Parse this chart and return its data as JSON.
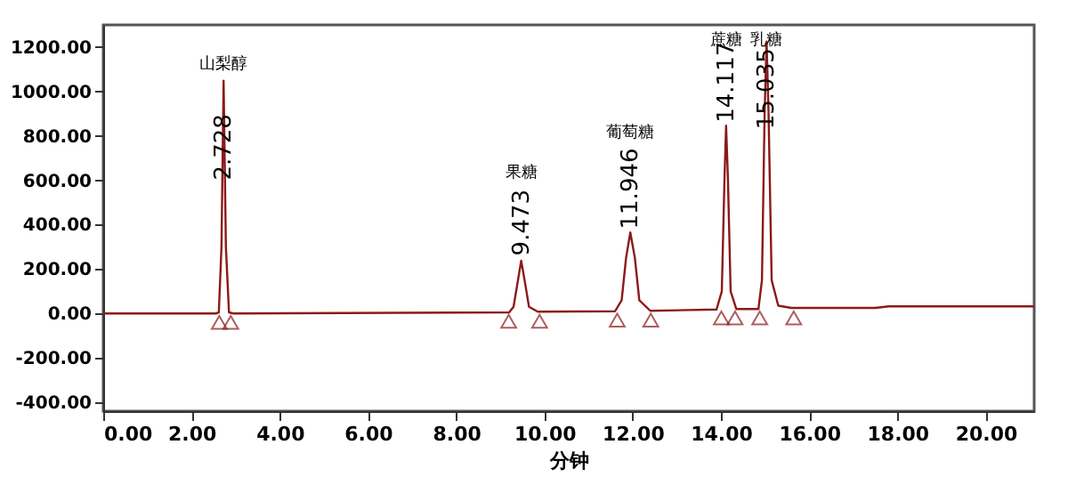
{
  "chart_data": {
    "type": "line",
    "xlabel": "分钟",
    "xlim": [
      0,
      21.1
    ],
    "ylim": [
      -440,
      1300
    ],
    "xticks": [
      {
        "value": 0,
        "label": "0.00"
      },
      {
        "value": 2,
        "label": "2.00"
      },
      {
        "value": 4,
        "label": "4.00"
      },
      {
        "value": 6,
        "label": "6.00"
      },
      {
        "value": 8,
        "label": "8.00"
      },
      {
        "value": 10,
        "label": "10.00"
      },
      {
        "value": 12,
        "label": "12.00"
      },
      {
        "value": 14,
        "label": "14.00"
      },
      {
        "value": 16,
        "label": "16.00"
      },
      {
        "value": 18,
        "label": "18.00"
      },
      {
        "value": 20,
        "label": "20.00"
      }
    ],
    "yticks": [
      {
        "value": -400,
        "label": "-400.00"
      },
      {
        "value": -200,
        "label": "-200.00"
      },
      {
        "value": 0,
        "label": "0.00"
      },
      {
        "value": 200,
        "label": "200.00"
      },
      {
        "value": 400,
        "label": "400.00"
      },
      {
        "value": 600,
        "label": "600.00"
      },
      {
        "value": 800,
        "label": "800.00"
      },
      {
        "value": 1000,
        "label": "1000.00"
      },
      {
        "value": 1200,
        "label": "1200.00"
      }
    ],
    "grid": false,
    "series": [
      {
        "color": "#8b1a1a",
        "marker": "none",
        "line_style": "solid",
        "x": [
          0,
          2.55,
          2.62,
          2.68,
          2.728,
          2.78,
          2.85,
          2.95,
          9.2,
          9.3,
          9.4,
          9.473,
          9.55,
          9.65,
          9.85,
          11.6,
          11.75,
          11.85,
          11.946,
          12.05,
          12.15,
          12.4,
          13.9,
          14.02,
          14.08,
          14.117,
          14.16,
          14.22,
          14.35,
          14.85,
          14.93,
          14.99,
          15.035,
          15.08,
          15.15,
          15.3,
          15.6,
          17.5,
          17.8,
          21.1
        ],
        "values": [
          0,
          0,
          5,
          300,
          1049,
          300,
          5,
          0,
          5,
          30,
          150,
          238,
          150,
          30,
          8,
          10,
          60,
          250,
          365,
          250,
          60,
          12,
          18,
          100,
          600,
          846,
          600,
          100,
          20,
          20,
          150,
          900,
          1225,
          900,
          150,
          35,
          25,
          25,
          32,
          32
        ]
      },
      {
        "type": "scatter",
        "color": "#8b1a1a",
        "marker": "triangle",
        "x": [
          2.63,
          2.89,
          9.19,
          9.89,
          11.65,
          12.41,
          14.01,
          14.32,
          14.88,
          15.65
        ],
        "values": [
          -40,
          -40,
          -35,
          -35,
          -30,
          -30,
          -20,
          -20,
          -20,
          -20
        ]
      }
    ],
    "annotations": [
      "山梨醇",
      "果糖",
      "葡萄糖",
      "蔗糖",
      "乳糖",
      {
        "text": "2.728",
        "x": 2.728,
        "y": 600
      },
      {
        "text": "9.473",
        "x": 9.473,
        "y": 260
      },
      {
        "text": "11.946",
        "x": 11.946,
        "y": 380
      },
      {
        "text": "14.117",
        "x": 14.117,
        "y": 860
      },
      {
        "text": "15.035",
        "x": 15.035,
        "y": 830
      }
    ]
  }
}
